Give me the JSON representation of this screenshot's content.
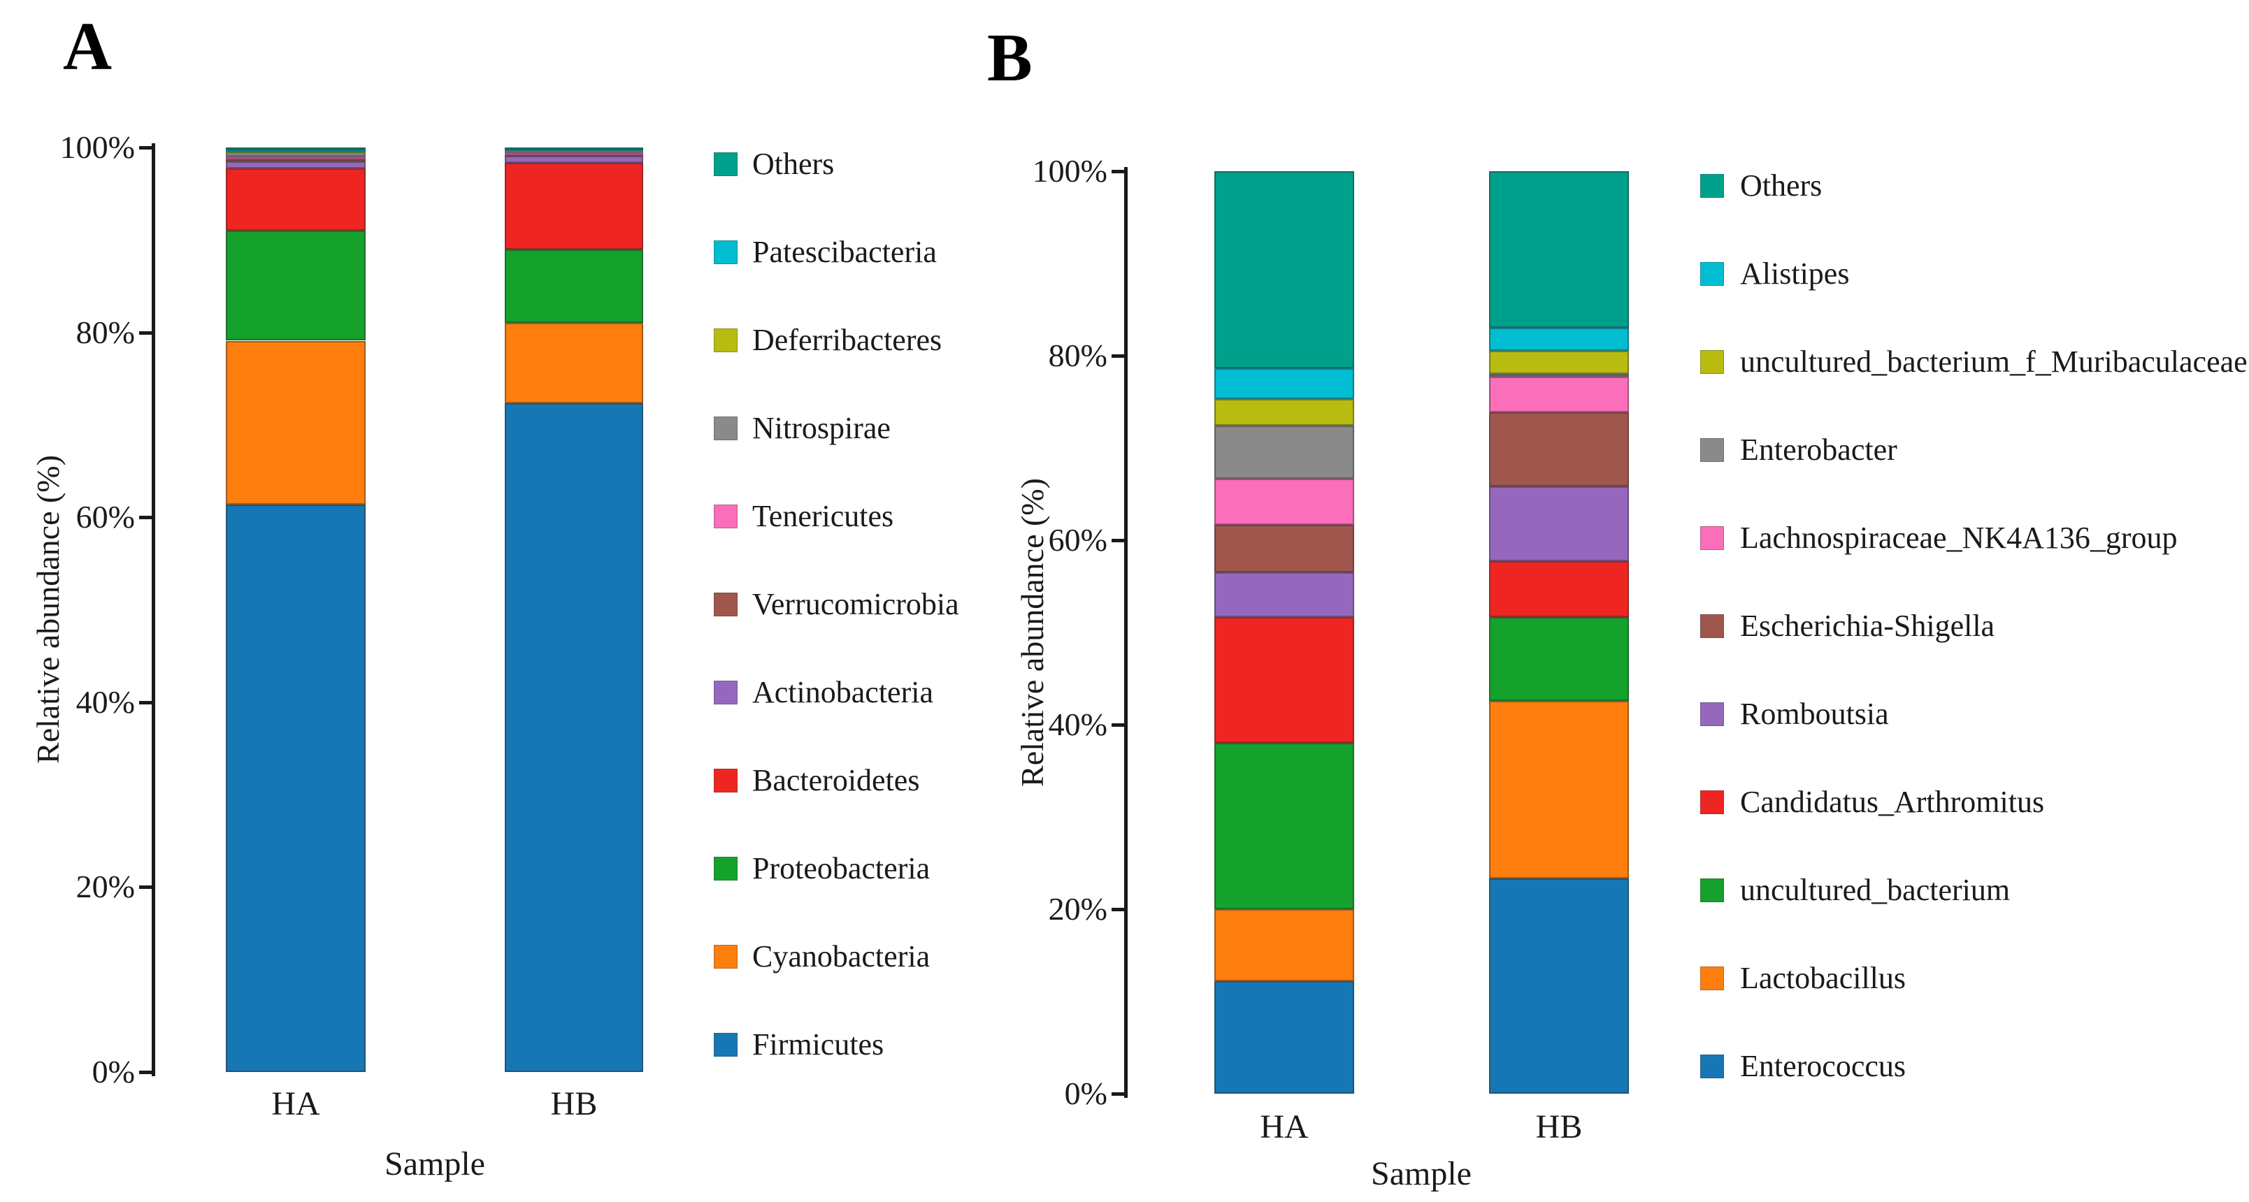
{
  "figure": {
    "background": "#ffffff",
    "panel_a_letter": "A",
    "panel_b_letter": "B"
  },
  "chart_data": [
    {
      "type": "bar",
      "subtype": "stacked_percentage_bar",
      "panel_label": "A",
      "title": "",
      "xlabel": "Sample",
      "ylabel": "Relative abundance (%)",
      "categories": [
        "HA",
        "HB"
      ],
      "yticks": [
        "100%",
        "80%",
        "60%",
        "40%",
        "20%",
        "0%"
      ],
      "ylim": [
        0,
        100
      ],
      "grid": "off",
      "legend_position": "right",
      "series_order_note": "series listed in legend order top-to-bottom; bars stack with the last series at the bottom",
      "series": [
        {
          "name": "Others",
          "color": "#00a18c",
          "values": [
            0.2,
            0.1
          ]
        },
        {
          "name": "Patescibacteria",
          "color": "#00bdd1",
          "values": [
            0.15,
            0.05
          ]
        },
        {
          "name": "Deferribacteres",
          "color": "#b9bc10",
          "values": [
            0.15,
            0.1
          ]
        },
        {
          "name": "Nitrospirae",
          "color": "#8a8a8a",
          "values": [
            0.5,
            0.3
          ]
        },
        {
          "name": "Tenericutes",
          "color": "#fb6eba",
          "values": [
            0.2,
            0.15
          ]
        },
        {
          "name": "Verrucomicrobia",
          "color": "#9f574d",
          "values": [
            0.3,
            0.2
          ]
        },
        {
          "name": "Actinobacteria",
          "color": "#9568bd",
          "values": [
            0.8,
            0.8
          ]
        },
        {
          "name": "Bacteroidetes",
          "color": "#ef2522",
          "values": [
            6.7,
            9.3
          ]
        },
        {
          "name": "Proteobacteria",
          "color": "#14a12c",
          "values": [
            11.9,
            8.0
          ]
        },
        {
          "name": "Cyanobacteria",
          "color": "#ff7f0e",
          "values": [
            17.7,
            8.7
          ]
        },
        {
          "name": "Firmicutes",
          "color": "#1777b4",
          "values": [
            61.4,
            72.3
          ]
        }
      ]
    },
    {
      "type": "bar",
      "subtype": "stacked_percentage_bar",
      "panel_label": "B",
      "title": "",
      "xlabel": "Sample",
      "ylabel": "Relative abundance (%)",
      "categories": [
        "HA",
        "HB"
      ],
      "yticks": [
        "100%",
        "80%",
        "60%",
        "40%",
        "20%",
        "0%"
      ],
      "ylim": [
        0,
        100
      ],
      "grid": "off",
      "legend_position": "right",
      "series_order_note": "series listed in legend order top-to-bottom; bars stack with the last series at the bottom",
      "series": [
        {
          "name": "Others",
          "color": "#00a18c",
          "values": [
            21.4,
            17.0
          ]
        },
        {
          "name": "Alistipes",
          "color": "#00bdd1",
          "values": [
            3.3,
            2.5
          ]
        },
        {
          "name": "uncultured_bacterium_f_Muribaculaceae",
          "color": "#b9bc10",
          "values": [
            2.9,
            2.5
          ]
        },
        {
          "name": "Enterobacter",
          "color": "#8a8a8a",
          "values": [
            5.7,
            0.3
          ]
        },
        {
          "name": "Lachnospiraceae_NK4A136_group",
          "color": "#fb6eba",
          "values": [
            5.0,
            3.8
          ]
        },
        {
          "name": "Escherichia-Shigella",
          "color": "#9f574d",
          "values": [
            5.2,
            8.1
          ]
        },
        {
          "name": "Romboutsia",
          "color": "#9568bd",
          "values": [
            4.8,
            8.1
          ]
        },
        {
          "name": "Candidatus_Arthromitus",
          "color": "#ef2522",
          "values": [
            13.7,
            6.0
          ]
        },
        {
          "name": "uncultured_bacterium",
          "color": "#14a12c",
          "values": [
            18.0,
            9.1
          ]
        },
        {
          "name": "Lactobacillus",
          "color": "#ff7f0e",
          "values": [
            7.8,
            19.3
          ]
        },
        {
          "name": "Enterococcus",
          "color": "#1777b4",
          "values": [
            12.2,
            23.3
          ]
        }
      ]
    }
  ]
}
